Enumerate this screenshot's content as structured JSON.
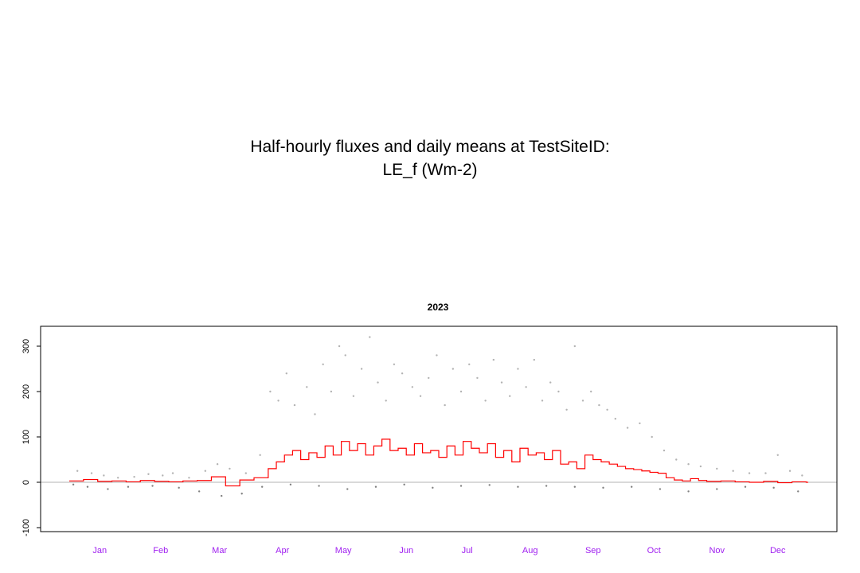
{
  "title_line1": "Half-hourly fluxes and daily means at TestSiteID:",
  "title_line2": "LE_f (Wm-2)",
  "chart_data": {
    "type": "line",
    "title": "2023",
    "xlabel": "",
    "ylabel": "",
    "x_unit": "day of year",
    "xlim": [
      1,
      365
    ],
    "ylim": [
      -110,
      330
    ],
    "y_ticks": [
      -100,
      0,
      100,
      200,
      300
    ],
    "y_tick_labels": [
      "-100",
      "0",
      "100",
      "200",
      "300"
    ],
    "x_month_labels": [
      "Jan",
      "Feb",
      "Mar",
      "Apr",
      "May",
      "Jun",
      "Jul",
      "Aug",
      "Sep",
      "Oct",
      "Nov",
      "Dec"
    ],
    "x_month_label_days": [
      16,
      46,
      75,
      106,
      136,
      167,
      197,
      228,
      259,
      289,
      320,
      350
    ],
    "reference_line_y": 0,
    "grid": false,
    "legend": "none",
    "series": [
      {
        "kind": "daily-mean-step",
        "color": "#ff0000",
        "x": [
          1,
          8,
          15,
          22,
          29,
          36,
          43,
          50,
          57,
          64,
          71,
          78,
          85,
          92,
          99,
          103,
          107,
          111,
          115,
          119,
          123,
          127,
          131,
          135,
          139,
          143,
          147,
          151,
          155,
          159,
          163,
          167,
          171,
          175,
          179,
          183,
          187,
          191,
          195,
          199,
          203,
          207,
          211,
          215,
          219,
          223,
          227,
          231,
          235,
          239,
          243,
          247,
          251,
          255,
          259,
          263,
          267,
          271,
          275,
          279,
          283,
          287,
          291,
          295,
          299,
          303,
          307,
          311,
          315,
          322,
          329,
          336,
          343,
          350,
          357,
          364
        ],
        "y": [
          3,
          6,
          2,
          3,
          1,
          4,
          2,
          1,
          3,
          4,
          12,
          -8,
          5,
          10,
          30,
          45,
          60,
          70,
          50,
          65,
          55,
          80,
          60,
          90,
          70,
          85,
          60,
          80,
          95,
          70,
          75,
          60,
          85,
          65,
          70,
          55,
          80,
          60,
          90,
          75,
          65,
          85,
          55,
          70,
          45,
          75,
          60,
          65,
          50,
          70,
          40,
          45,
          30,
          60,
          50,
          45,
          40,
          35,
          30,
          28,
          25,
          22,
          20,
          10,
          5,
          3,
          8,
          4,
          2,
          3,
          1,
          0,
          2,
          -1,
          1,
          0
        ]
      },
      {
        "kind": "half-hourly-points",
        "color": "#b3b3b3",
        "x": [
          5,
          12,
          18,
          25,
          33,
          40,
          47,
          52,
          60,
          68,
          74,
          80,
          88,
          95,
          100,
          104,
          108,
          112,
          118,
          122,
          126,
          130,
          134,
          137,
          141,
          145,
          149,
          153,
          157,
          161,
          165,
          170,
          174,
          178,
          182,
          186,
          190,
          194,
          198,
          202,
          206,
          210,
          214,
          218,
          222,
          226,
          230,
          234,
          238,
          242,
          246,
          250,
          254,
          258,
          262,
          266,
          270,
          276,
          282,
          288,
          294,
          300,
          306,
          312,
          320,
          328,
          336,
          344,
          350,
          356,
          362
        ],
        "y": [
          25,
          20,
          15,
          10,
          12,
          18,
          15,
          20,
          10,
          25,
          40,
          30,
          20,
          60,
          200,
          180,
          240,
          170,
          210,
          150,
          260,
          200,
          300,
          280,
          190,
          250,
          320,
          220,
          180,
          260,
          240,
          210,
          190,
          230,
          280,
          170,
          250,
          200,
          260,
          230,
          180,
          270,
          220,
          190,
          250,
          210,
          270,
          180,
          220,
          200,
          160,
          300,
          180,
          200,
          170,
          160,
          140,
          120,
          130,
          100,
          70,
          50,
          40,
          35,
          30,
          25,
          20,
          20,
          60,
          25,
          15
        ]
      },
      {
        "kind": "half-hourly-points",
        "color": "#808080",
        "x": [
          3,
          10,
          20,
          30,
          42,
          55,
          65,
          76,
          86,
          96,
          110,
          124,
          138,
          152,
          166,
          180,
          194,
          208,
          222,
          236,
          250,
          264,
          278,
          292,
          306,
          320,
          334,
          348,
          360
        ],
        "y": [
          -5,
          -10,
          -15,
          -10,
          -8,
          -12,
          -20,
          -30,
          -25,
          -10,
          -5,
          -8,
          -15,
          -10,
          -5,
          -12,
          -8,
          -6,
          -10,
          -8,
          -10,
          -12,
          -10,
          -15,
          -20,
          -15,
          -10,
          -12,
          -20
        ]
      }
    ]
  }
}
